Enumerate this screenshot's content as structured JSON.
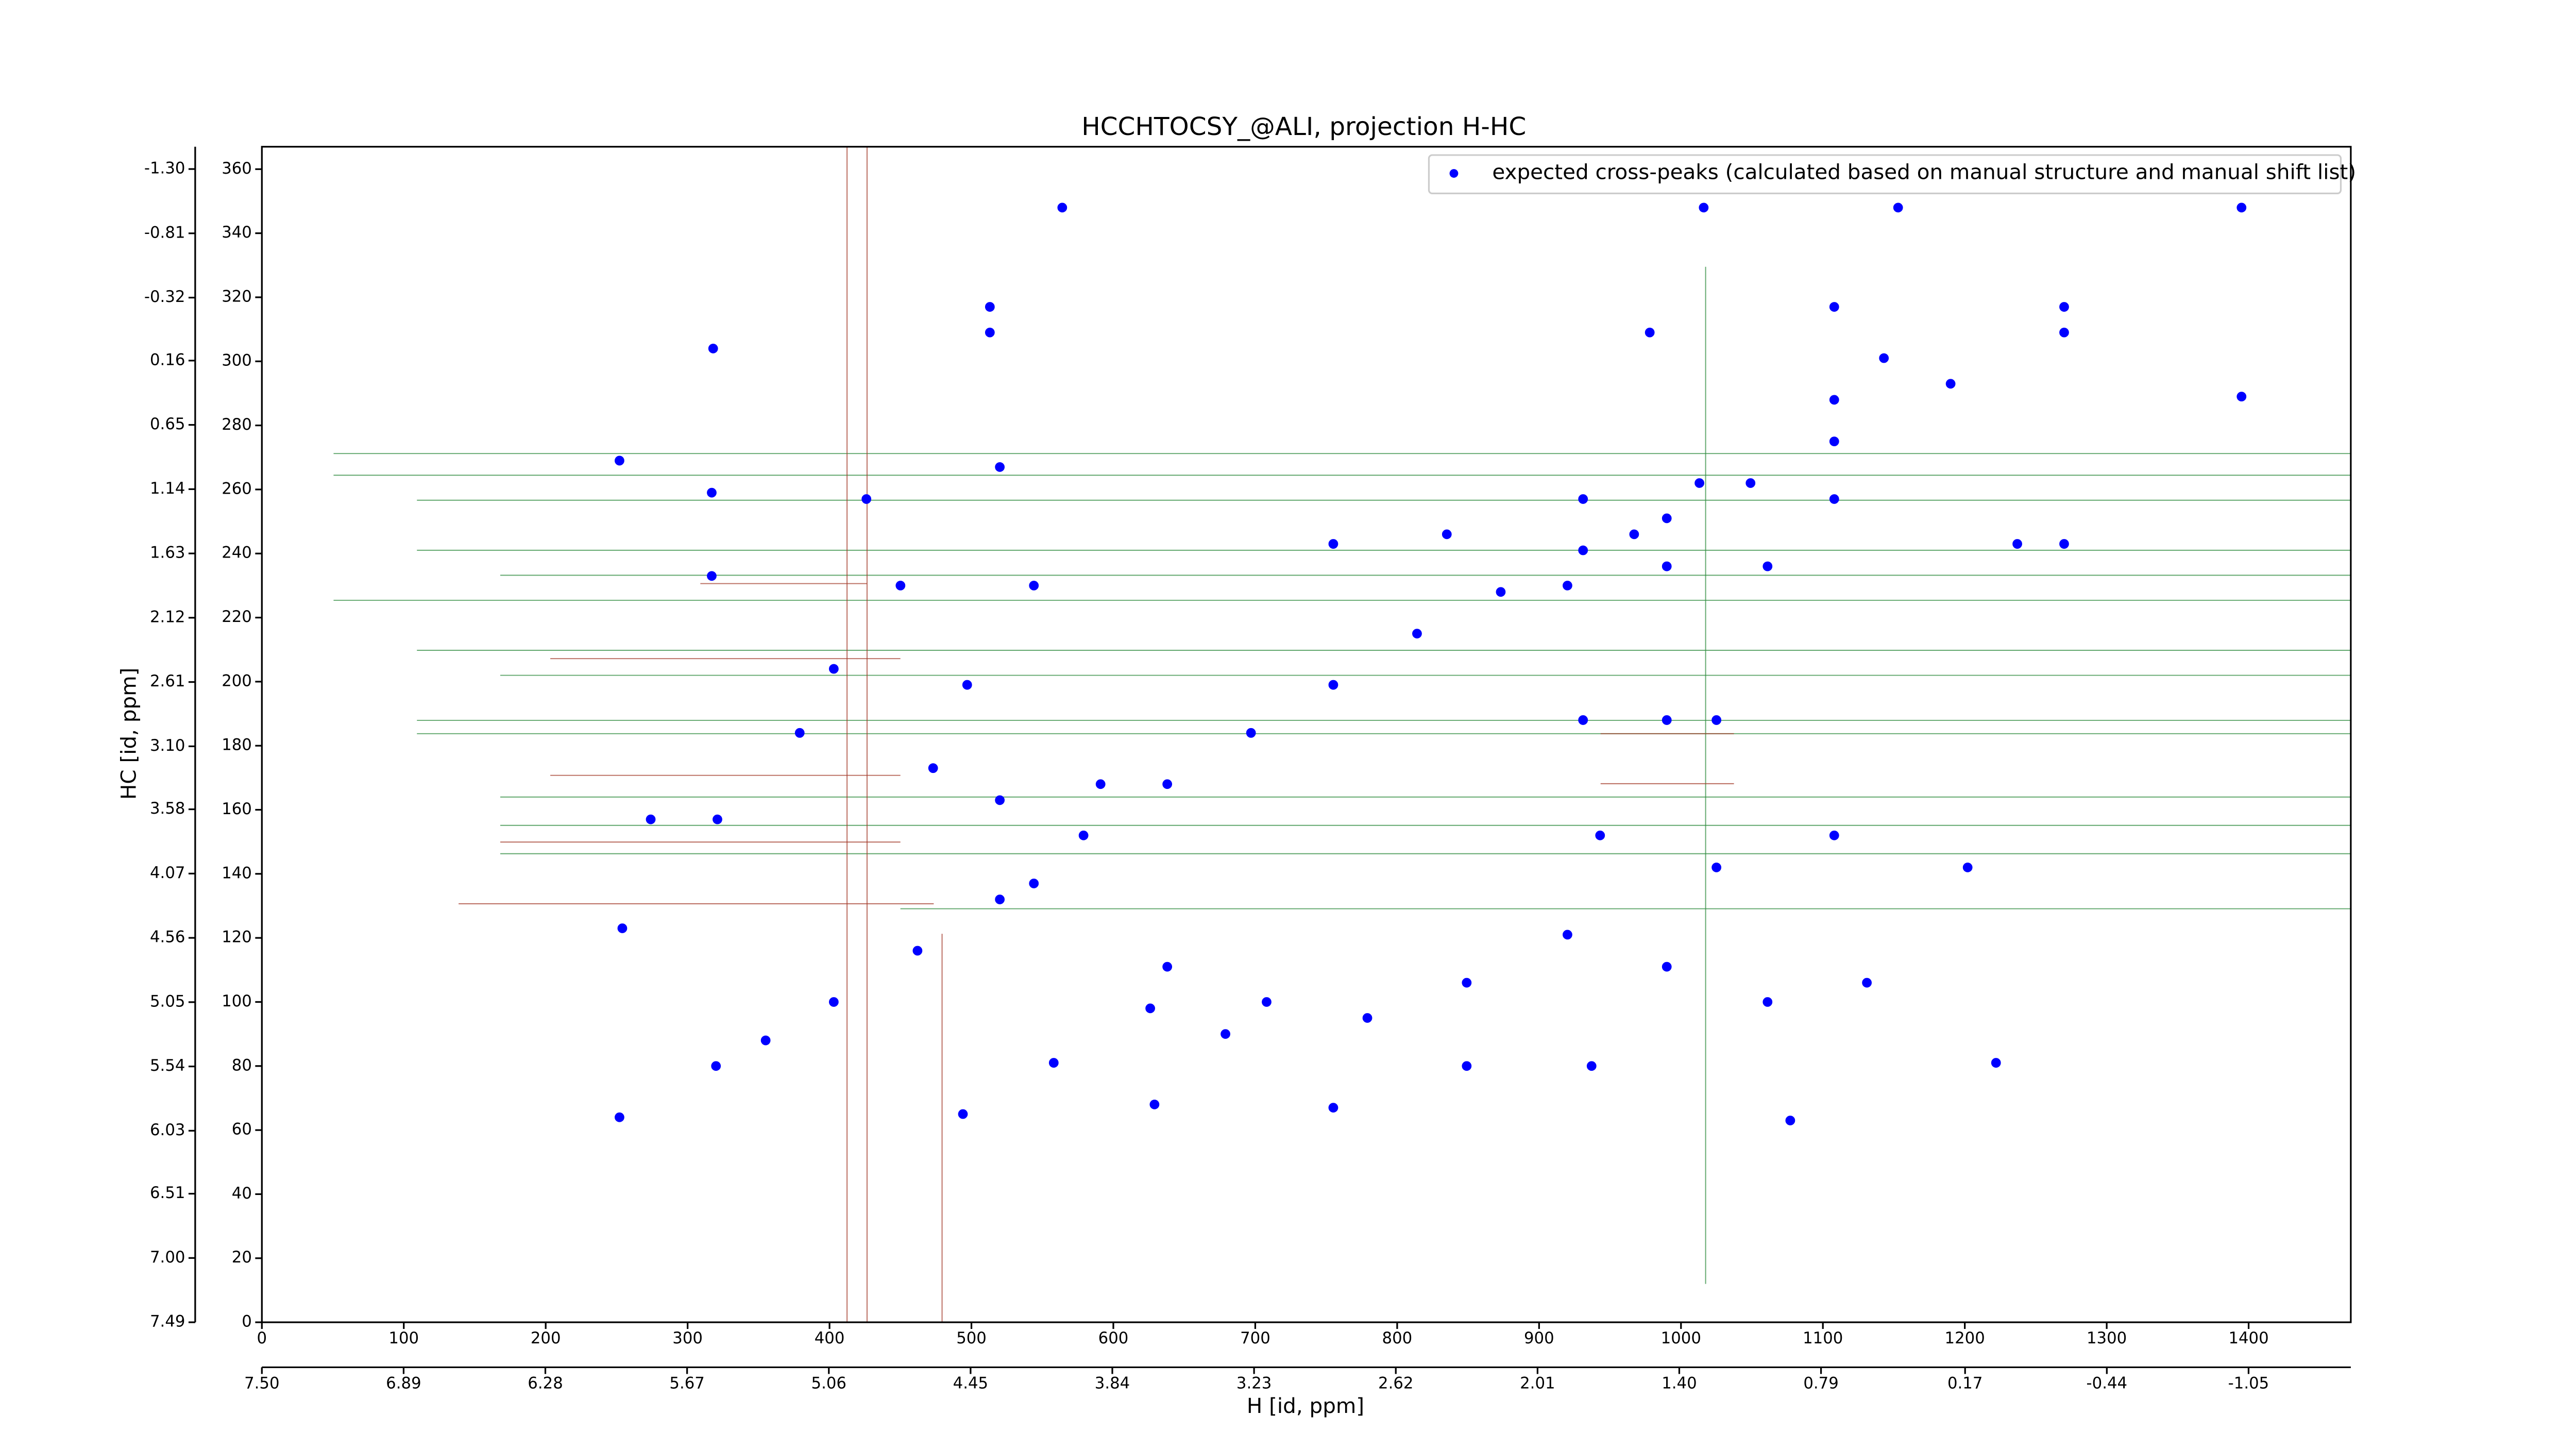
{
  "chart_data": {
    "type": "scatter",
    "title": "HCCHTOCSY_@ALI, projection H-HC",
    "xlabel": "H [id, ppm]",
    "ylabel": "HC [id, ppm]",
    "xlim": [
      0,
      1472
    ],
    "ylim": [
      0,
      367
    ],
    "xticks": [
      0,
      100,
      200,
      300,
      400,
      500,
      600,
      700,
      800,
      900,
      1000,
      1100,
      1200,
      1300,
      1400
    ],
    "yticks": [
      0,
      20,
      40,
      60,
      80,
      100,
      120,
      140,
      160,
      180,
      200,
      220,
      240,
      260,
      280,
      300,
      320,
      340,
      360
    ],
    "x2lim": [
      7.5,
      -1.49
    ],
    "x2ticks": [
      {
        "value": 7.5,
        "label": "7.50"
      },
      6.89,
      6.28,
      5.67,
      5.06,
      4.45,
      3.84,
      3.23,
      2.62,
      2.01,
      {
        "value": 1.4,
        "label": "1.40"
      },
      0.79,
      0.17,
      -0.44,
      -1.05
    ],
    "y2lim": [
      7.49,
      -1.47
    ],
    "y2ticks": [
      7.49,
      {
        "value": 7.0,
        "label": "7.00"
      },
      6.51,
      6.03,
      5.54,
      5.05,
      4.56,
      4.07,
      3.58,
      {
        "value": 3.1,
        "label": "3.10"
      },
      2.61,
      2.12,
      1.63,
      1.14,
      0.65,
      0.16,
      -0.32,
      -0.81,
      {
        "value": -1.3,
        "label": "-1.30"
      }
    ],
    "legend": "upper right",
    "series": [
      {
        "name": "expected cross-peaks (calculated based on manual structure and manual shift list)",
        "color": "#0000ff",
        "x": [
          564,
          1016,
          1395,
          1153,
          513,
          513,
          1108,
          1270,
          1270,
          978,
          318,
          252,
          317,
          317,
          274,
          321,
          254,
          494,
          629,
          1222,
          1077,
          1395,
          1270,
          1237,
          835,
          755,
          931,
          967,
          990,
          1013,
          920,
          1061,
          1108,
          931,
          990,
          1025,
          638,
          708,
          779,
          849,
          920,
          990,
          1061,
          1131,
          1202,
          849,
          937,
          755,
          679,
          626,
          558,
          520,
          544,
          591,
          943,
          1025,
          1108,
          426,
          450,
          403,
          379,
          520,
          544,
          497,
          473,
          252,
          320,
          355,
          403,
          462,
          520,
          579,
          638,
          697,
          755,
          814,
          873,
          931,
          990,
          1049,
          1108,
          1143,
          1190,
          1108
        ],
        "y": [
          348,
          348,
          348,
          348,
          317,
          309,
          317,
          317,
          309,
          309,
          304,
          269,
          259,
          233,
          157,
          157,
          123,
          65,
          68,
          81,
          63,
          289,
          243,
          243,
          246,
          243,
          257,
          246,
          236,
          262,
          230,
          236,
          257,
          188,
          188,
          188,
          111,
          100,
          95,
          106,
          121,
          111,
          100,
          106,
          142,
          80,
          80,
          67,
          90,
          98,
          81,
          163,
          137,
          168,
          152,
          142,
          152,
          257,
          230,
          204,
          184,
          267,
          230,
          199,
          173,
          64,
          80,
          88,
          100,
          116,
          132,
          152,
          168,
          184,
          199,
          215,
          228,
          241,
          251,
          262,
          275,
          301,
          293,
          288
        ]
      }
    ]
  }
}
